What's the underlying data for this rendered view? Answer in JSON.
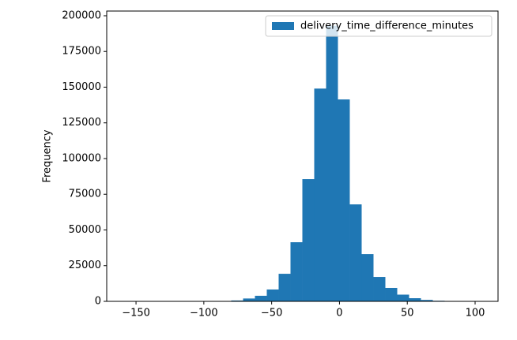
{
  "chart_data": {
    "type": "histogram",
    "ylabel": "Frequency",
    "bins": [
      -158.5,
      -149.76,
      -141.01,
      -132.27,
      -123.53,
      -114.79,
      -106.04,
      -97.3,
      -88.56,
      -79.81,
      -71.07,
      -62.33,
      -53.59,
      -44.84,
      -36.1,
      -27.36,
      -18.61,
      -9.87,
      -1.13,
      7.61,
      16.36,
      25.1,
      33.84,
      42.59,
      51.33,
      60.07,
      68.81,
      77.56,
      86.3,
      95.04,
      103.78
    ],
    "series": [
      {
        "name": "delivery_time_difference_minutes",
        "color": "#1f77b4",
        "values": [
          5,
          0,
          0,
          0,
          2,
          5,
          10,
          30,
          100,
          600,
          2000,
          3900,
          8300,
          19300,
          41400,
          85600,
          149000,
          193000,
          141400,
          67900,
          33100,
          17100,
          9400,
          4700,
          2200,
          1000,
          400,
          100,
          50,
          20
        ]
      }
    ],
    "xlim": [
      -171.6,
      116.9
    ],
    "ylim": [
      0,
      203300
    ],
    "xticks": [
      {
        "value": -150,
        "label": "−150"
      },
      {
        "value": -100,
        "label": "−100"
      },
      {
        "value": -50,
        "label": "−50"
      },
      0,
      50,
      100
    ],
    "yticks": [
      0,
      25000,
      50000,
      75000,
      100000,
      125000,
      150000,
      175000,
      200000
    ],
    "legend": "upper right"
  }
}
